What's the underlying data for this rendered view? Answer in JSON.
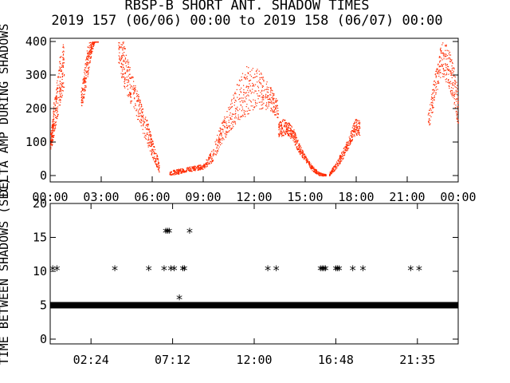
{
  "title_line1": "RBSP-B SHORT ANT. SHADOW TIMES",
  "title_line2": "2019 157 (06/06) 00:00 to 2019 158 (06/07) 00:00",
  "colors": {
    "points": "#ff2a00",
    "axes": "#000000",
    "background": "#ffffff"
  },
  "chart_data": [
    {
      "type": "scatter",
      "ylabel": "DELTA AMP DURING SHADOWS",
      "ylim": [
        0,
        400
      ],
      "yticks": [
        "0",
        "100",
        "200",
        "300",
        "400"
      ],
      "xlim": [
        0,
        24
      ],
      "xticks": [
        "00:00",
        "03:00",
        "06:00",
        "09:00",
        "12:00",
        "15:00",
        "18:00",
        "21:00",
        "00:00"
      ],
      "series": [
        {
          "color": "#ff2a00",
          "bands": [
            {
              "x": [
                0.0,
                0.1,
                0.2,
                0.4,
                0.6,
                0.8
              ],
              "y_low": [
                80,
                90,
                120,
                170,
                220,
                260
              ],
              "y_high": [
                130,
                160,
                220,
                290,
                380,
                400
              ]
            },
            {
              "x": [
                1.8,
                2.0,
                2.2,
                2.4,
                2.6,
                2.8
              ],
              "y_low": [
                200,
                240,
                300,
                360,
                400,
                400
              ],
              "y_high": [
                260,
                320,
                400,
                400,
                400,
                400
              ]
            },
            {
              "x": [
                4.0,
                4.3,
                4.6,
                5.0,
                5.4,
                5.8,
                6.1,
                6.4
              ],
              "y_low": [
                330,
                270,
                230,
                180,
                130,
                80,
                40,
                10
              ],
              "y_high": [
                400,
                400,
                340,
                270,
                210,
                150,
                90,
                40
              ]
            },
            {
              "x": [
                7.0,
                7.5,
                8.0,
                8.5,
                9.0,
                9.5,
                10.0
              ],
              "y_low": [
                0,
                5,
                10,
                15,
                20,
                40,
                90
              ],
              "y_high": [
                15,
                20,
                25,
                30,
                35,
                80,
                150
              ]
            },
            {
              "x": [
                10.0,
                10.5,
                11.0,
                11.5,
                12.0,
                12.5,
                13.0,
                13.4
              ],
              "y_low": [
                90,
                130,
                160,
                180,
                200,
                200,
                190,
                170
              ],
              "y_high": [
                150,
                210,
                280,
                330,
                330,
                300,
                260,
                220
              ]
            },
            {
              "x": [
                13.4,
                13.7,
                14.0,
                14.3,
                14.6,
                15.0,
                15.4,
                15.8,
                16.2
              ],
              "y_low": [
                110,
                120,
                120,
                100,
                70,
                40,
                15,
                0,
                0
              ],
              "y_high": [
                160,
                170,
                160,
                140,
                100,
                60,
                30,
                10,
                5
              ]
            },
            {
              "x": [
                16.4,
                16.8,
                17.2,
                17.6,
                17.9,
                18.2
              ],
              "y_low": [
                0,
                20,
                50,
                90,
                120,
                120
              ],
              "y_high": [
                10,
                40,
                80,
                120,
                170,
                170
              ]
            },
            {
              "x": [
                22.2,
                22.6,
                23.0,
                23.4,
                23.7,
                24.0
              ],
              "y_low": [
                120,
                220,
                300,
                270,
                220,
                140
              ],
              "y_high": [
                180,
                300,
                400,
                390,
                330,
                250
              ]
            }
          ]
        }
      ]
    },
    {
      "type": "scatter",
      "ylabel": "TIME BETWEEN SHADOWS (SEC)",
      "ylim": [
        0,
        20
      ],
      "yticks": [
        "0",
        "5",
        "10",
        "15",
        "20"
      ],
      "xlim": [
        0,
        24
      ],
      "xticks": [
        "02:24",
        "07:12",
        "12:00",
        "16:48",
        "21:35"
      ],
      "marker": "*",
      "baseline": {
        "y": 5,
        "x_start": 0,
        "x_end": 24
      },
      "points": [
        {
          "x": 0.15,
          "y": 10.5
        },
        {
          "x": 0.4,
          "y": 10.5
        },
        {
          "x": 3.8,
          "y": 10.5
        },
        {
          "x": 5.8,
          "y": 10.5
        },
        {
          "x": 6.8,
          "y": 16.0
        },
        {
          "x": 6.9,
          "y": 16.0
        },
        {
          "x": 7.0,
          "y": 16.0
        },
        {
          "x": 6.7,
          "y": 10.5
        },
        {
          "x": 7.1,
          "y": 10.5
        },
        {
          "x": 7.3,
          "y": 10.5
        },
        {
          "x": 7.6,
          "y": 6.2
        },
        {
          "x": 7.5,
          "y": 5.0
        },
        {
          "x": 7.8,
          "y": 10.5
        },
        {
          "x": 7.9,
          "y": 10.5
        },
        {
          "x": 8.2,
          "y": 16.0
        },
        {
          "x": 12.8,
          "y": 10.5
        },
        {
          "x": 13.3,
          "y": 10.5
        },
        {
          "x": 15.9,
          "y": 10.5
        },
        {
          "x": 16.0,
          "y": 10.5
        },
        {
          "x": 16.1,
          "y": 10.5
        },
        {
          "x": 16.2,
          "y": 10.5
        },
        {
          "x": 16.4,
          "y": 5.0
        },
        {
          "x": 16.8,
          "y": 10.5
        },
        {
          "x": 16.9,
          "y": 10.5
        },
        {
          "x": 17.0,
          "y": 10.5
        },
        {
          "x": 17.8,
          "y": 10.5
        },
        {
          "x": 18.4,
          "y": 10.5
        },
        {
          "x": 21.2,
          "y": 10.5
        },
        {
          "x": 21.7,
          "y": 10.5
        }
      ]
    }
  ]
}
